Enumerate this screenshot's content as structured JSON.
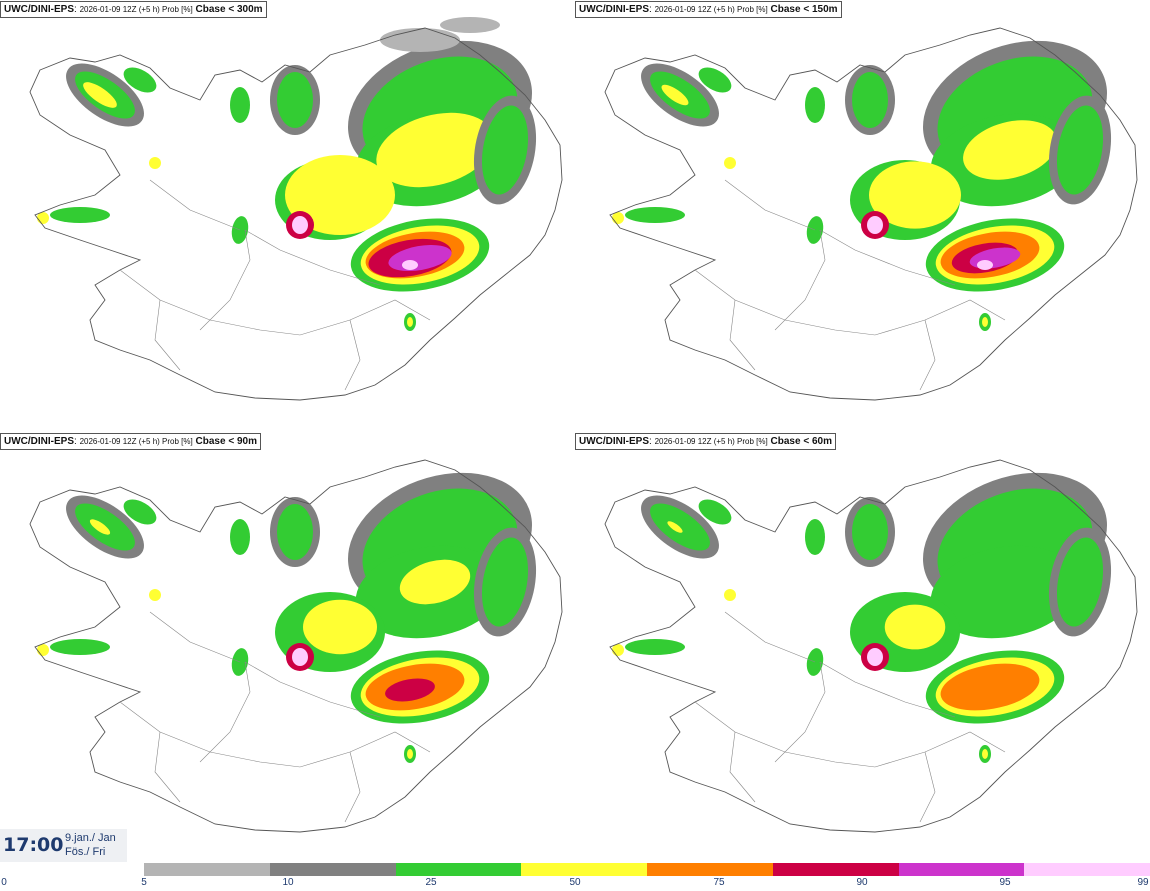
{
  "panels": [
    {
      "model": "UWC/DINI-EPS",
      "info": "2026-01-09 12Z (+5 h) Prob [%]",
      "variable": "Cbase < 300m",
      "intensity": 1.0
    },
    {
      "model": "UWC/DINI-EPS",
      "info": "2026-01-09 12Z (+5 h) Prob [%]",
      "variable": "Cbase < 150m",
      "intensity": 0.8
    },
    {
      "model": "UWC/DINI-EPS",
      "info": "2026-01-09 12Z (+5 h) Prob [%]",
      "variable": "Cbase < 90m",
      "intensity": 0.6
    },
    {
      "model": "UWC/DINI-EPS",
      "info": "2026-01-09 12Z (+5 h) Prob [%]",
      "variable": "Cbase < 60m",
      "intensity": 0.45
    }
  ],
  "valid_time": {
    "time": "17:00",
    "date_line1": "9.jan./ Jan",
    "date_line2": "Fös./ Fri"
  },
  "colorbar": {
    "ticks": [
      "0",
      "5",
      "10",
      "25",
      "50",
      "75",
      "90",
      "95",
      "99"
    ],
    "segments": [
      {
        "from": "5",
        "to": "10",
        "color": "#b4b4b4"
      },
      {
        "from": "10",
        "to": "25",
        "color": "#808080"
      },
      {
        "from": "25",
        "to": "50",
        "color": "#33cc33"
      },
      {
        "from": "50",
        "to": "75",
        "color": "#ffff33"
      },
      {
        "from": "75",
        "to": "90",
        "color": "#ff7f00"
      },
      {
        "from": "90",
        "to": "95",
        "color": "#cc0044"
      },
      {
        "from": "95",
        "to": "99",
        "color": "#cc33cc"
      },
      {
        "from": "99",
        "to": "",
        "color": "#ffccff"
      }
    ]
  }
}
